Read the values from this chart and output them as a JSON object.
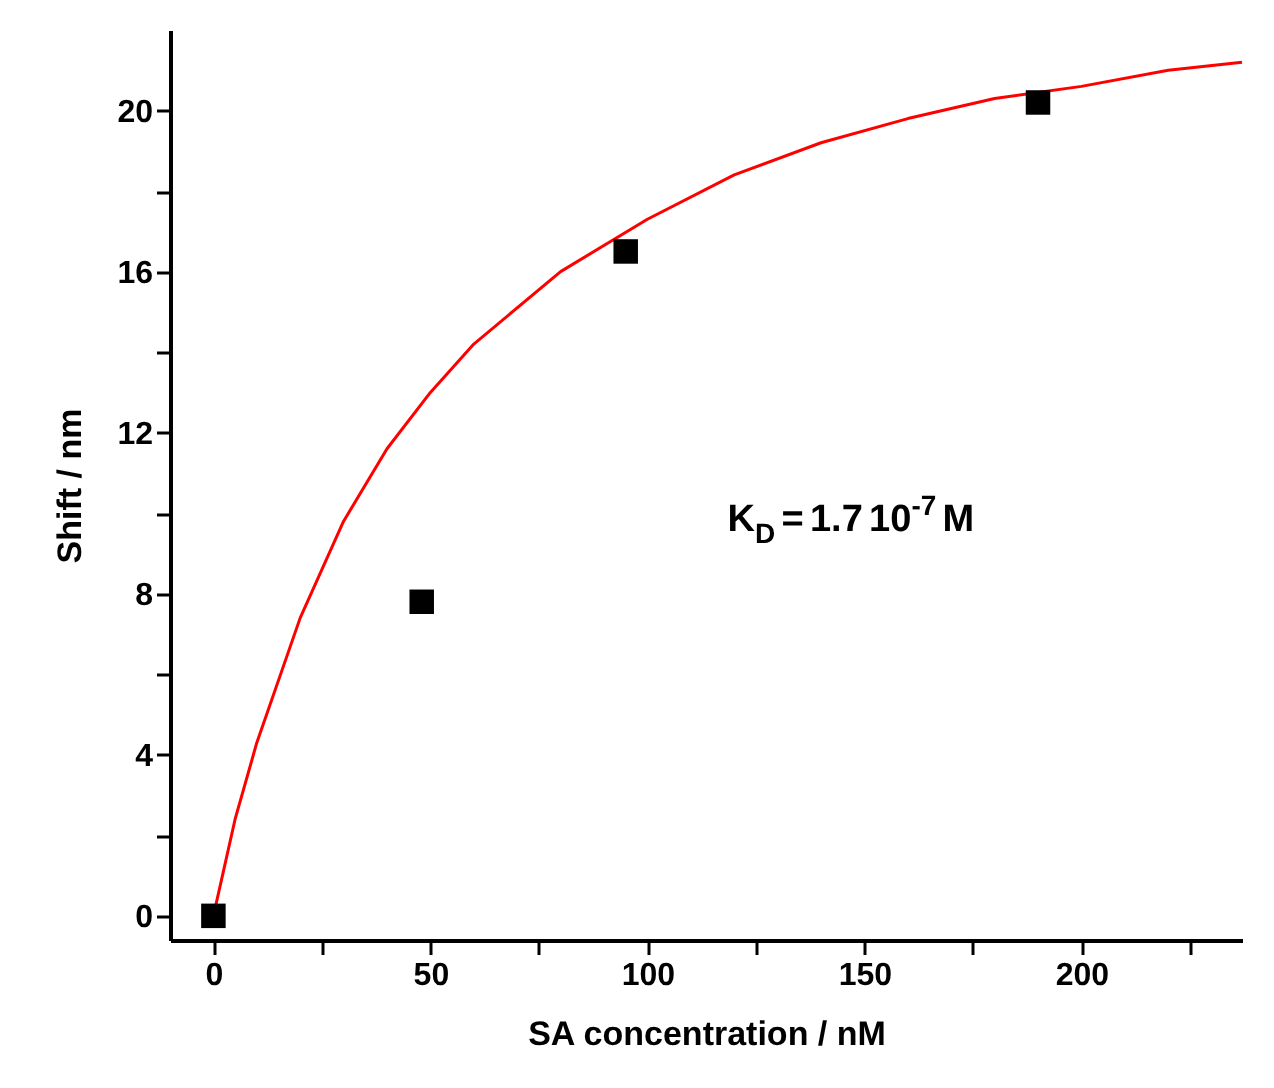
{
  "chart_data": {
    "type": "scatter",
    "xlabel": "SA concentration / nM",
    "ylabel": "Shift / nm",
    "xlim": [
      -10,
      237
    ],
    "ylim": [
      -0.6,
      22
    ],
    "xticks": [
      0,
      {
        "value": 25,
        "label": null
      },
      50,
      {
        "value": 75,
        "label": null
      },
      100,
      {
        "value": 125,
        "label": null
      },
      150,
      {
        "value": 175,
        "label": null
      },
      200,
      {
        "value": 225,
        "label": null
      }
    ],
    "yticks": [
      0,
      {
        "value": 2,
        "label": null
      },
      4,
      {
        "value": 6,
        "label": null
      },
      8,
      {
        "value": 10,
        "label": null
      },
      12,
      {
        "value": 14,
        "label": null
      },
      16,
      {
        "value": 18,
        "label": null
      },
      20
    ],
    "grid": false,
    "annotations": [
      "K$_{D}$ = 1.7 10$^{-7}$ M"
    ],
    "series": [
      {
        "type": "line",
        "color": "#ff0000",
        "x": [
          0,
          5,
          10,
          20,
          30,
          40,
          50,
          60,
          80,
          100,
          120,
          140,
          160,
          180,
          200,
          220,
          237
        ],
        "values": [
          0,
          2.4,
          4.3,
          7.4,
          9.8,
          11.6,
          13.0,
          14.2,
          16.0,
          17.3,
          18.4,
          19.2,
          19.8,
          20.3,
          20.6,
          21.0,
          21.2
        ]
      },
      {
        "color": "#000000",
        "marker": "square",
        "x": [
          0,
          48,
          95,
          190
        ],
        "values": [
          0,
          7.8,
          16.5,
          20.2
        ]
      }
    ]
  }
}
